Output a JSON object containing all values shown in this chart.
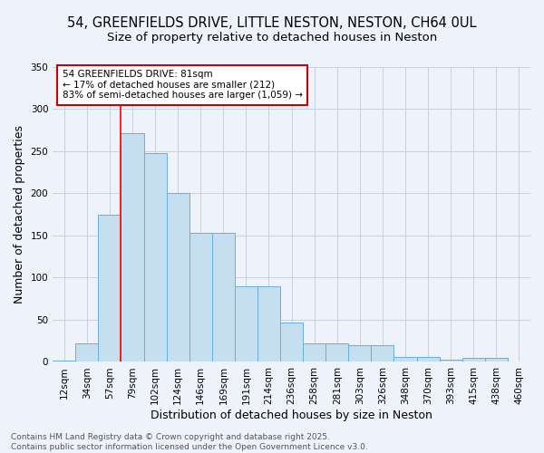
{
  "title_line1": "54, GREENFIELDS DRIVE, LITTLE NESTON, NESTON, CH64 0UL",
  "title_line2": "Size of property relative to detached houses in Neston",
  "xlabel": "Distribution of detached houses by size in Neston",
  "ylabel": "Number of detached properties",
  "categories": [
    "12sqm",
    "34sqm",
    "57sqm",
    "79sqm",
    "102sqm",
    "124sqm",
    "146sqm",
    "169sqm",
    "191sqm",
    "214sqm",
    "236sqm",
    "258sqm",
    "281sqm",
    "303sqm",
    "326sqm",
    "348sqm",
    "370sqm",
    "393sqm",
    "415sqm",
    "438sqm",
    "460sqm"
  ],
  "values": [
    2,
    22,
    175,
    272,
    248,
    200,
    153,
    153,
    90,
    90,
    47,
    22,
    22,
    20,
    20,
    6,
    6,
    3,
    5,
    5,
    1
  ],
  "bar_color": "#c5dff0",
  "bar_edge_color": "#6aaed6",
  "redline_index": 3,
  "annotation_text": "54 GREENFIELDS DRIVE: 81sqm\n← 17% of detached houses are smaller (212)\n83% of semi-detached houses are larger (1,059) →",
  "annotation_box_facecolor": "#ffffff",
  "annotation_box_edgecolor": "#cc0000",
  "ylim_max": 350,
  "yticks": [
    0,
    50,
    100,
    150,
    200,
    250,
    300,
    350
  ],
  "background_color": "#edf2fb",
  "grid_color": "#c8d0e0",
  "title_fontsize": 10.5,
  "subtitle_fontsize": 9.5,
  "axis_label_fontsize": 9,
  "tick_fontsize": 7.5,
  "annotation_fontsize": 7.5,
  "footer_fontsize": 6.5,
  "footer_text": "Contains HM Land Registry data © Crown copyright and database right 2025.\nContains public sector information licensed under the Open Government Licence v3.0."
}
